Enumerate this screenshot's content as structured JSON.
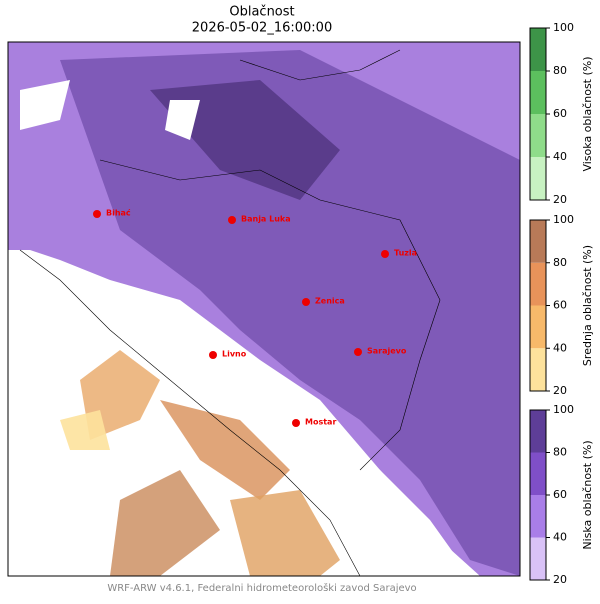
{
  "title": "Oblačnost",
  "subtitle": "2026-05-02_16:00:00",
  "colorbars": [
    {
      "label": "Visoka oblačnost (%)",
      "ticks": [
        20,
        40,
        60,
        80,
        100
      ],
      "colors": [
        "#c8f2c2",
        "#8fdc8a",
        "#5cbf5e",
        "#3d9448"
      ]
    },
    {
      "label": "Srednja oblačnost (%)",
      "ticks": [
        20,
        40,
        60,
        80,
        100
      ],
      "colors": [
        "#fde29c",
        "#f7b96a",
        "#e8935a",
        "#b87a58"
      ]
    },
    {
      "label": "Niska oblačnost (%)",
      "ticks": [
        20,
        40,
        60,
        80,
        100
      ],
      "colors": [
        "#d9c2f7",
        "#a97ee8",
        "#7f4fc8",
        "#5e3e98"
      ]
    }
  ],
  "cities": [
    "Bihać",
    "Banja Luka",
    "Tuzla",
    "Zenica",
    "Livno",
    "Sarajevo",
    "Mostar"
  ],
  "footer": "WRF-ARW v4.6.1, Federalni hidrometeorološki zavod Sarajevo"
}
